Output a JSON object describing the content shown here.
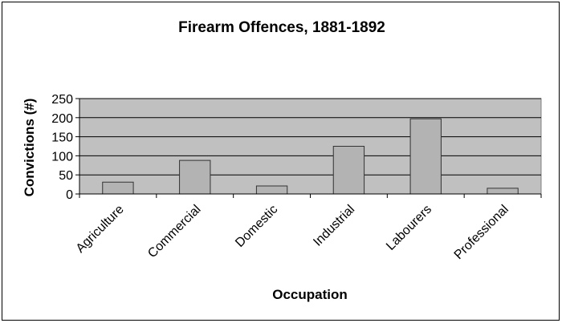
{
  "chart_data": {
    "type": "bar",
    "title": "Firearm Offences, 1881-1892",
    "xlabel": "Occupation",
    "ylabel": "Convictions (#)",
    "categories": [
      "Agriculture",
      "Commercial",
      "Domestic",
      "Industrial",
      "Labourers",
      "Professional"
    ],
    "values": [
      31,
      88,
      21,
      125,
      197,
      15
    ],
    "ylim": [
      0,
      250
    ],
    "yticks": [
      "250",
      "200",
      "150",
      "100",
      "50",
      "0"
    ],
    "grid": true,
    "legend": "none",
    "colors": {
      "plot_background": "#c0c0c0",
      "bar_fill": "#b3b3b3",
      "bar_stroke": "#333333",
      "gridline": "#000000"
    }
  }
}
